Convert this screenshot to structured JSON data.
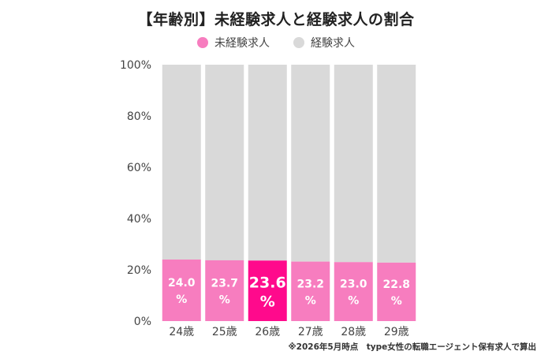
{
  "chart_data": {
    "type": "bar",
    "stacked": true,
    "title": "【年齢別】未経験求人と経験求人の割合",
    "categories": [
      "24歳",
      "25歳",
      "26歳",
      "27歳",
      "28歳",
      "29歳"
    ],
    "series": [
      {
        "name": "未経験求人",
        "color": "#f77dbf",
        "values": [
          24.0,
          23.7,
          23.6,
          23.2,
          23.0,
          22.8
        ]
      },
      {
        "name": "経験求人",
        "color": "#d9d9d9",
        "values": [
          76.0,
          76.3,
          76.4,
          76.8,
          77.0,
          77.2
        ]
      }
    ],
    "highlight": {
      "category": "26歳",
      "color": "#ff0a8c"
    },
    "data_labels": [
      "24.0",
      "23.7",
      "23.6",
      "23.2",
      "23.0",
      "22.8"
    ],
    "data_label_unit": "%",
    "ylim": [
      0,
      100
    ],
    "yticks": [
      "0%",
      "20%",
      "40%",
      "60%",
      "80%",
      "100%"
    ],
    "xlabel": "",
    "ylabel": "",
    "legend_position": "top-center",
    "grid": false
  },
  "footnote": "※2026年5月時点　type女性の転職エージェント保有求人で算出"
}
